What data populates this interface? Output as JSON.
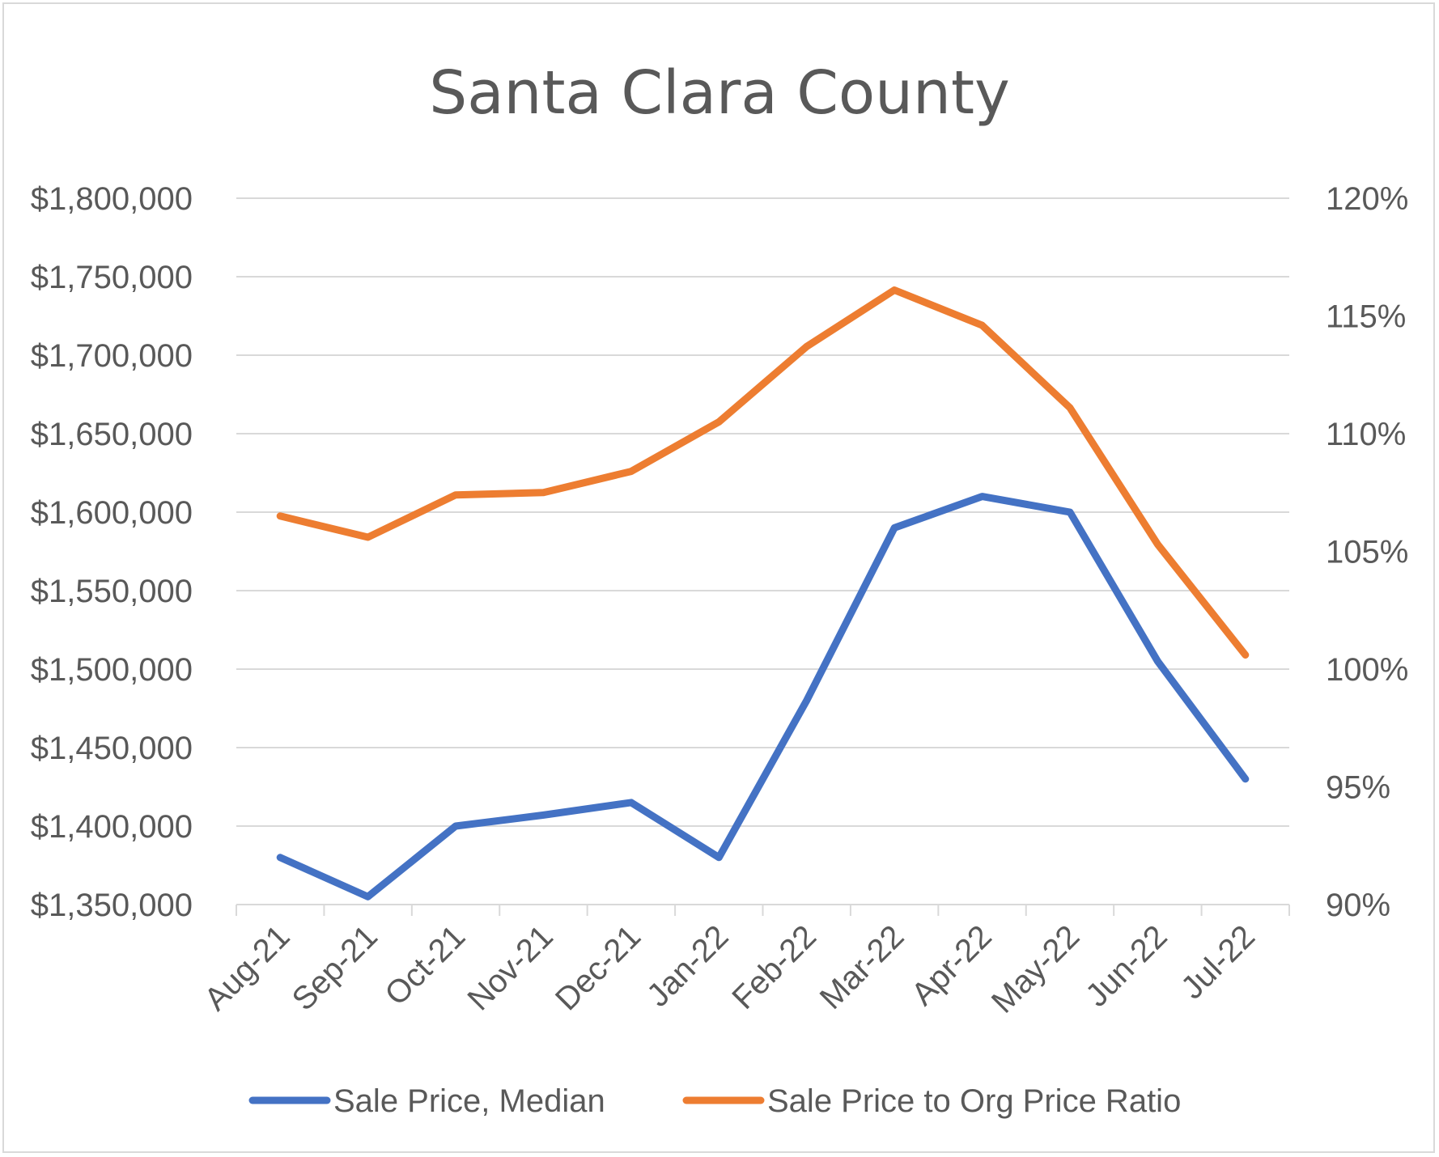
{
  "chart_data": {
    "type": "line",
    "title": "Santa Clara County",
    "categories": [
      "Aug-21",
      "Sep-21",
      "Oct-21",
      "Nov-21",
      "Dec-21",
      "Jan-22",
      "Feb-22",
      "Mar-22",
      "Apr-22",
      "May-22",
      "Jun-22",
      "Jul-22"
    ],
    "left_axis": {
      "ylim": [
        1350000,
        1800000
      ],
      "ticks": [
        1350000,
        1400000,
        1450000,
        1500000,
        1550000,
        1600000,
        1650000,
        1700000,
        1750000,
        1800000
      ],
      "tick_labels": [
        "$1,350,000",
        "$1,400,000",
        "$1,450,000",
        "$1,500,000",
        "$1,550,000",
        "$1,600,000",
        "$1,650,000",
        "$1,700,000",
        "$1,750,000",
        "$1,800,000"
      ]
    },
    "right_axis": {
      "ylim": [
        90,
        120
      ],
      "ticks": [
        90,
        95,
        100,
        105,
        110,
        115,
        120
      ],
      "tick_labels": [
        "90%",
        "95%",
        "100%",
        "105%",
        "110%",
        "115%",
        "120%"
      ]
    },
    "series": [
      {
        "name": "Sale Price, Median",
        "axis": "left",
        "color": "#4472c4",
        "values": [
          1380000,
          1355000,
          1400000,
          1407000,
          1415000,
          1380000,
          1480000,
          1590000,
          1610000,
          1600000,
          1505000,
          1430000
        ]
      },
      {
        "name": "Sale Price to Org Price Ratio",
        "axis": "right",
        "color": "#ed7d31",
        "values": [
          106.5,
          105.6,
          107.4,
          107.5,
          108.4,
          110.5,
          113.7,
          116.1,
          114.6,
          111.1,
          105.3,
          100.6
        ]
      }
    ],
    "legend": "bottom",
    "grid": true
  }
}
